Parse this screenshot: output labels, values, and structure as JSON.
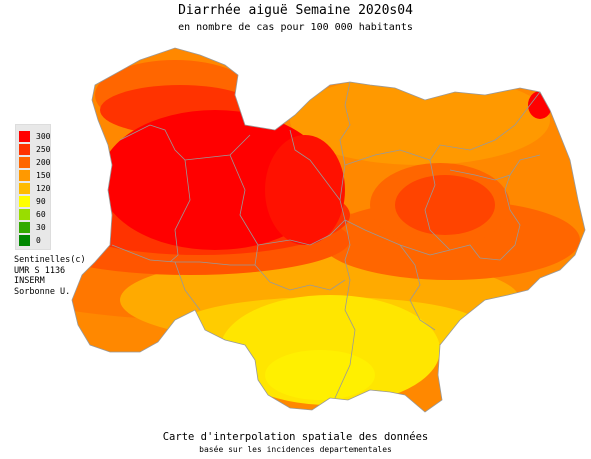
{
  "title": "Diarrhée aiguë Semaine 2020s04",
  "subtitle": "en nombre de cas pour 100 000 habitants",
  "legend": {
    "items": [
      {
        "label": "300",
        "color": "#ff0000"
      },
      {
        "label": "250",
        "color": "#ff3300"
      },
      {
        "label": "200",
        "color": "#ff6600"
      },
      {
        "label": "150",
        "color": "#ff9900"
      },
      {
        "label": "120",
        "color": "#ffbb00"
      },
      {
        "label": "90",
        "color": "#ffff00"
      },
      {
        "label": "60",
        "color": "#99dd00"
      },
      {
        "label": "30",
        "color": "#33aa00"
      },
      {
        "label": "0",
        "color": "#008800"
      }
    ]
  },
  "credits": [
    "Sentinelles(c)",
    "UMR S 1136",
    "INSERM",
    "Sorbonne U."
  ],
  "footer": {
    "line1": "Carte d'interpolation spatiale des données",
    "line2": "basée sur les incidences departementales"
  }
}
